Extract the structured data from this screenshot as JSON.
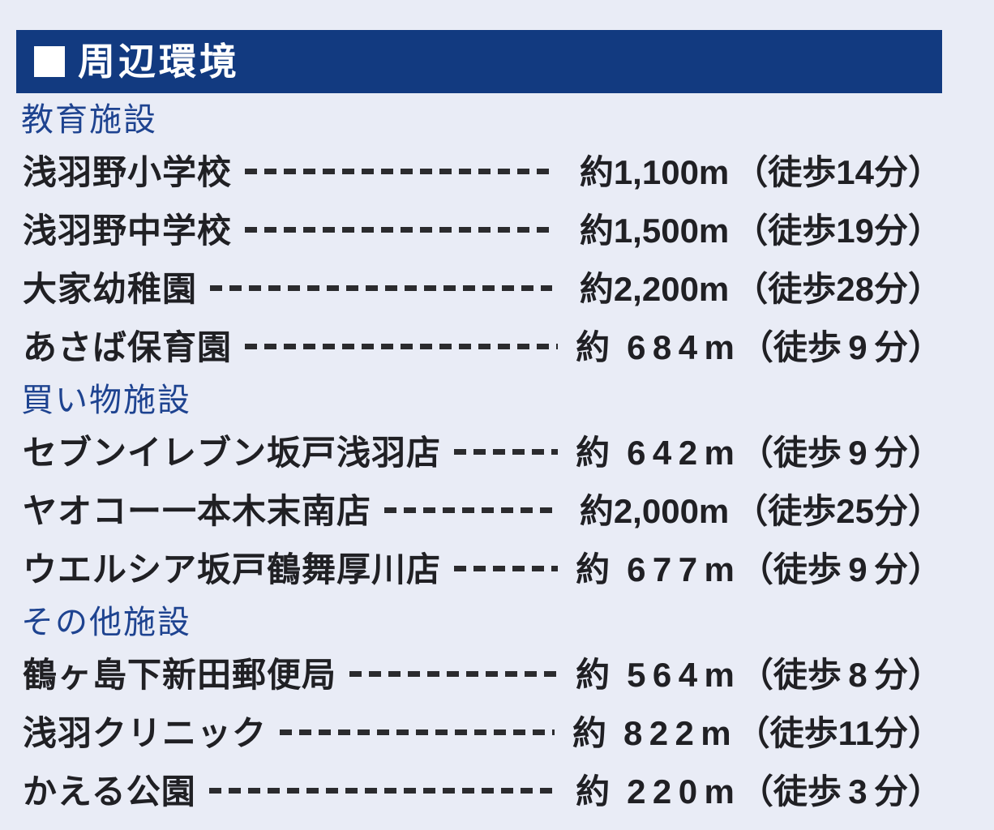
{
  "colors": {
    "page_background": "#e9ecf6",
    "header_bar_background": "#123a80",
    "header_text": "#ffffff",
    "section_title_text": "#1e4390",
    "row_text": "#202024",
    "leader_dash": "#2b2b2e"
  },
  "icons": {
    "header_marker": "filled-white-square"
  },
  "header": {
    "title": "周辺環境"
  },
  "sections": [
    {
      "title": "教育施設",
      "rows": [
        {
          "name": "浅羽野小学校",
          "distance": "約1,100m",
          "walk": "（徒歩14分）"
        },
        {
          "name": "浅羽野中学校",
          "distance": "約1,500m",
          "walk": "（徒歩19分）"
        },
        {
          "name": "大家幼稚園",
          "distance": "約2,200m",
          "walk": "（徒歩28分）"
        },
        {
          "name": "あさば保育園",
          "distance": "約 6 8 4 m",
          "walk": "（徒歩 9 分）"
        }
      ]
    },
    {
      "title": "買い物施設",
      "rows": [
        {
          "name": "セブンイレブン坂戸浅羽店",
          "distance": "約 6 4 2 m",
          "walk": "（徒歩 9 分）"
        },
        {
          "name": "ヤオコー一本木末南店",
          "distance": "約2,000m",
          "walk": "（徒歩25分）"
        },
        {
          "name": "ウエルシア坂戸鶴舞厚川店",
          "distance": "約 6 7 7 m",
          "walk": "（徒歩 9 分）"
        }
      ]
    },
    {
      "title": "その他施設",
      "rows": [
        {
          "name": "鶴ヶ島下新田郵便局",
          "distance": "約 5 6 4 m",
          "walk": "（徒歩 8 分）"
        },
        {
          "name": "浅羽クリニック",
          "distance": "約 8 2 2 m",
          "walk": "（徒歩11分）"
        },
        {
          "name": "かえる公園",
          "distance": "約 2 2 0 m",
          "walk": "（徒歩 3 分）"
        }
      ]
    }
  ]
}
